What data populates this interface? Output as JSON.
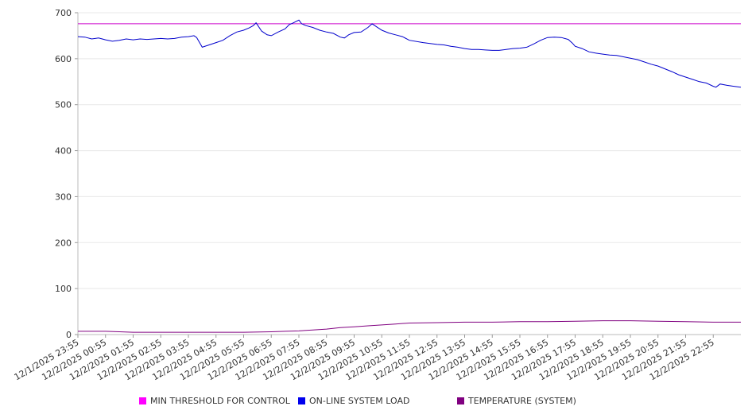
{
  "chart_data": {
    "type": "line",
    "title": "",
    "xlabel": "",
    "ylabel": "",
    "ylim": [
      0,
      700
    ],
    "yticks": [
      0,
      100,
      200,
      300,
      400,
      500,
      600,
      700
    ],
    "grid": true,
    "legend_position": "bottom",
    "x_tick_labels": [
      "12/1/2025 23:55",
      "12/2/2025 00:55",
      "12/2/2025 01:55",
      "12/2/2025 02:55",
      "12/2/2025 03:55",
      "12/2/2025 04:55",
      "12/2/2025 05:55",
      "12/2/2025 06:55",
      "12/2/2025 07:55",
      "12/2/2025 08:55",
      "12/2/2025 09:55",
      "12/2/2025 10:55",
      "12/2/2025 11:55",
      "12/2/2025 12:55",
      "12/2/2025 13:55",
      "12/2/2025 14:55",
      "12/2/2025 15:55",
      "12/2/2025 16:55",
      "12/2/2025 17:55",
      "12/2/2025 18:55",
      "12/2/2025 19:55",
      "12/2/2025 20:55",
      "12/2/2025 21:55",
      "12/2/2025 22:55"
    ],
    "x_hours_range": [
      0,
      24
    ],
    "series": [
      {
        "name": "MIN THRESHOLD FOR CONTROL",
        "color": "#cc00cc",
        "x": [
          0,
          24
        ],
        "values": [
          676,
          676
        ]
      },
      {
        "name": "ON-LINE SYSTEM LOAD",
        "color": "#0000cc",
        "x": [
          0,
          0.25,
          0.5,
          0.75,
          1.0,
          1.25,
          1.5,
          1.75,
          2.0,
          2.25,
          2.5,
          2.75,
          3.0,
          3.25,
          3.5,
          3.75,
          4.0,
          4.2,
          4.3,
          4.5,
          4.75,
          5.0,
          5.25,
          5.5,
          5.75,
          6.0,
          6.2,
          6.35,
          6.45,
          6.65,
          6.85,
          7.0,
          7.25,
          7.5,
          7.65,
          7.8,
          8.0,
          8.1,
          8.25,
          8.5,
          8.75,
          9.0,
          9.25,
          9.5,
          9.65,
          9.8,
          10.0,
          10.25,
          10.5,
          10.65,
          10.8,
          11.0,
          11.25,
          11.5,
          11.75,
          12.0,
          12.5,
          13.0,
          13.25,
          13.5,
          13.75,
          14.0,
          14.25,
          14.5,
          14.75,
          15.0,
          15.25,
          15.5,
          15.75,
          16.0,
          16.25,
          16.5,
          16.75,
          17.0,
          17.25,
          17.5,
          17.75,
          17.9,
          18.0,
          18.25,
          18.5,
          18.75,
          19.0,
          19.25,
          19.5,
          19.75,
          20.0,
          20.25,
          20.5,
          20.75,
          21.0,
          21.25,
          21.5,
          21.75,
          22.0,
          22.25,
          22.5,
          22.75,
          23.0,
          23.1,
          23.25,
          23.5,
          23.75,
          24.0
        ],
        "values": [
          648,
          647,
          643,
          645,
          641,
          638,
          640,
          643,
          641,
          643,
          642,
          643,
          644,
          643,
          644,
          647,
          648,
          650,
          646,
          625,
          630,
          635,
          640,
          650,
          658,
          662,
          667,
          672,
          678,
          660,
          652,
          650,
          658,
          665,
          674,
          678,
          684,
          676,
          672,
          668,
          662,
          658,
          655,
          647,
          645,
          652,
          657,
          658,
          668,
          676,
          670,
          662,
          656,
          652,
          648,
          640,
          635,
          631,
          630,
          627,
          625,
          622,
          620,
          620,
          619,
          618,
          618,
          620,
          622,
          623,
          625,
          632,
          640,
          646,
          647,
          646,
          642,
          634,
          627,
          622,
          615,
          612,
          610,
          608,
          607,
          604,
          601,
          598,
          593,
          588,
          584,
          578,
          572,
          565,
          560,
          555,
          550,
          547,
          540,
          538,
          545,
          542,
          540,
          538
        ]
      },
      {
        "name": "TEMPERATURE (SYSTEM)",
        "color": "#800080",
        "x": [
          0,
          1,
          2,
          3,
          4,
          5,
          6,
          7,
          7.5,
          8,
          8.5,
          9,
          9.5,
          10,
          10.5,
          11,
          11.5,
          12,
          13,
          14,
          15,
          16,
          17,
          18,
          19,
          20,
          21,
          22,
          23,
          24
        ],
        "values": [
          7,
          7,
          5,
          5,
          5,
          5,
          5,
          6,
          7,
          8,
          10,
          12,
          15,
          17,
          19,
          21,
          23,
          25,
          26,
          27,
          27,
          28,
          28,
          29,
          30,
          30,
          29,
          28,
          27,
          27
        ]
      }
    ]
  }
}
